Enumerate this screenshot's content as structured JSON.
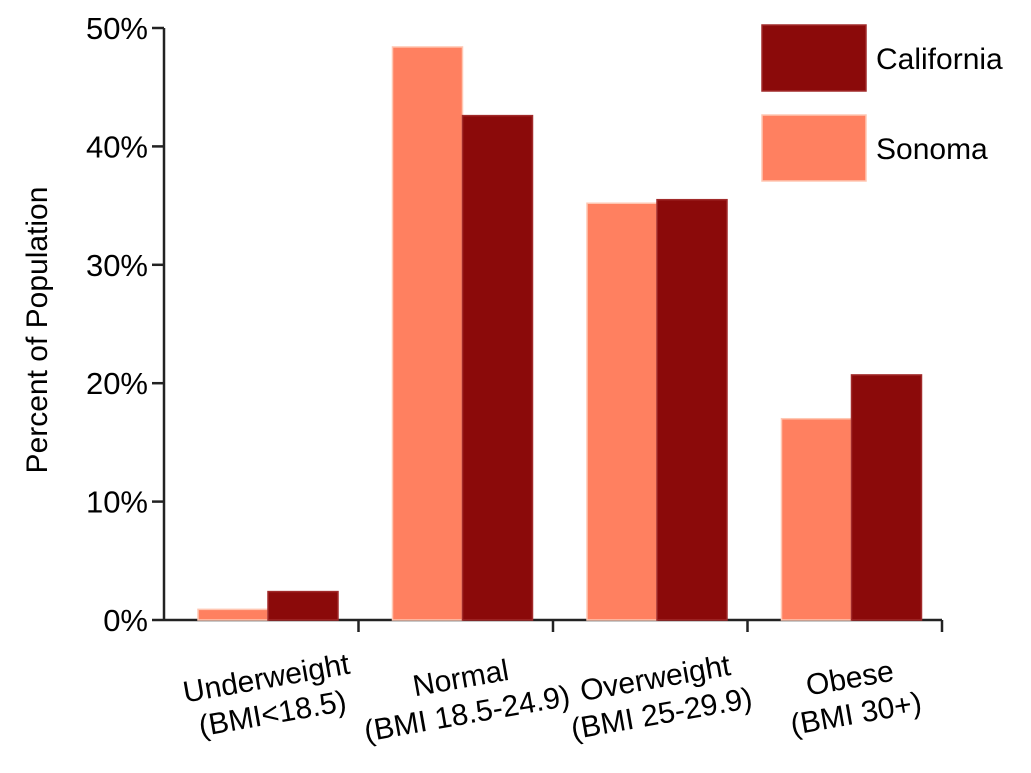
{
  "chart_data": {
    "type": "bar",
    "title": "",
    "xlabel": "",
    "ylabel": "Percent of Population",
    "ylim": [
      0,
      50
    ],
    "yticks": [
      "0%",
      "10%",
      "20%",
      "30%",
      "40%",
      "50%"
    ],
    "categories": [
      [
        "Underweight",
        "(BMI<18.5)"
      ],
      [
        "Normal",
        "(BMI 18.5-24.9)"
      ],
      [
        "Overweight",
        "(BMI 25-29.9)"
      ],
      [
        "Obese",
        "(BMI 30+)"
      ]
    ],
    "series": [
      {
        "name": "Sonoma",
        "color": "#FF8060",
        "values": [
          0.9,
          48.4,
          35.2,
          17.0
        ]
      },
      {
        "name": "California",
        "color": "#8B0A0A",
        "values": [
          2.4,
          42.6,
          35.5,
          20.7
        ]
      }
    ],
    "legend": {
      "position": "top-right",
      "order": [
        "California",
        "Sonoma"
      ]
    },
    "grid": false
  }
}
